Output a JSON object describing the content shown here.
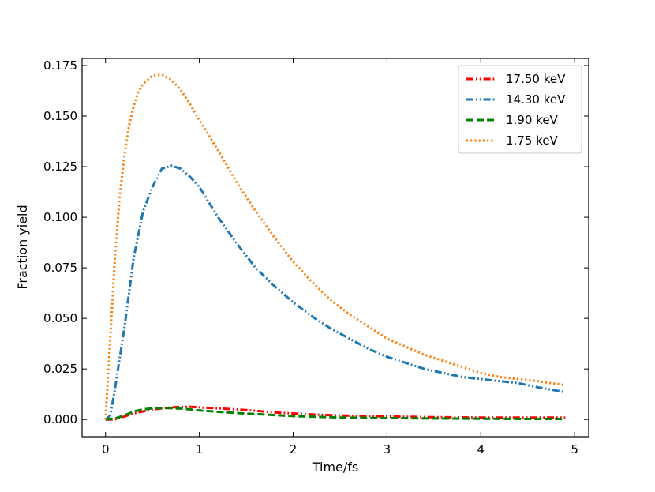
{
  "chart_data": {
    "type": "line",
    "title": "",
    "xlabel": "Time/fs",
    "ylabel": "Fraction yield",
    "xlim": [
      -0.25,
      5.15
    ],
    "ylim": [
      -0.0085,
      0.1785
    ],
    "xticks": [
      0,
      1,
      2,
      3,
      4,
      5
    ],
    "xtick_labels": [
      "0",
      "1",
      "2",
      "3",
      "4",
      "5"
    ],
    "yticks": [
      0.0,
      0.025,
      0.05,
      0.075,
      0.1,
      0.125,
      0.15,
      0.175
    ],
    "ytick_labels": [
      "0.000",
      "0.025",
      "0.050",
      "0.075",
      "0.100",
      "0.125",
      "0.150",
      "0.175"
    ],
    "grid": false,
    "legend_position": "top-right",
    "series": [
      {
        "name": "17.50 keV",
        "color": "#ff0000",
        "style": "dashdotdot",
        "x": [
          0,
          0.1,
          0.2,
          0.3,
          0.4,
          0.5,
          0.6,
          0.7,
          0.8,
          0.9,
          1.0,
          1.2,
          1.4,
          1.6,
          1.8,
          2.0,
          2.2,
          2.5,
          3.0,
          3.5,
          4.0,
          4.5,
          4.9
        ],
        "y": [
          0.0,
          0.0,
          0.0015,
          0.003,
          0.004,
          0.005,
          0.0055,
          0.006,
          0.0062,
          0.0063,
          0.006,
          0.0055,
          0.005,
          0.0043,
          0.0035,
          0.003,
          0.0025,
          0.002,
          0.0015,
          0.0012,
          0.001,
          0.001,
          0.001
        ]
      },
      {
        "name": "14.30 keV",
        "color": "#1f77b4",
        "style": "dashdotdot",
        "x": [
          0,
          0.05,
          0.1,
          0.2,
          0.3,
          0.4,
          0.5,
          0.6,
          0.7,
          0.8,
          0.9,
          1.0,
          1.2,
          1.4,
          1.6,
          1.8,
          2.0,
          2.2,
          2.4,
          2.6,
          2.8,
          3.0,
          3.2,
          3.4,
          3.6,
          3.8,
          4.0,
          4.2,
          4.4,
          4.6,
          4.9
        ],
        "y": [
          0.0,
          0.002,
          0.015,
          0.045,
          0.08,
          0.103,
          0.115,
          0.124,
          0.1255,
          0.124,
          0.12,
          0.115,
          0.1,
          0.087,
          0.075,
          0.066,
          0.058,
          0.051,
          0.045,
          0.04,
          0.035,
          0.031,
          0.028,
          0.025,
          0.023,
          0.021,
          0.02,
          0.019,
          0.018,
          0.016,
          0.0135
        ]
      },
      {
        "name": "1.90 keV",
        "color": "#008000",
        "style": "dashed",
        "x": [
          0,
          0.1,
          0.2,
          0.3,
          0.4,
          0.5,
          0.6,
          0.7,
          0.8,
          0.9,
          1.0,
          1.2,
          1.4,
          1.6,
          1.8,
          2.0,
          2.2,
          2.5,
          3.0,
          3.5,
          4.0,
          4.5,
          4.9
        ],
        "y": [
          0.0,
          0.0005,
          0.002,
          0.004,
          0.005,
          0.0055,
          0.0057,
          0.0056,
          0.0054,
          0.005,
          0.0045,
          0.0038,
          0.0032,
          0.0027,
          0.0022,
          0.0017,
          0.0014,
          0.001,
          0.0007,
          0.0005,
          0.0004,
          0.0003,
          0.0003
        ]
      },
      {
        "name": "1.75 keV",
        "color": "#ff7f0e",
        "style": "dotted",
        "x": [
          0,
          0.05,
          0.1,
          0.15,
          0.2,
          0.25,
          0.3,
          0.35,
          0.4,
          0.5,
          0.6,
          0.7,
          0.8,
          0.9,
          1.0,
          1.2,
          1.4,
          1.6,
          1.8,
          2.0,
          2.2,
          2.4,
          2.6,
          2.8,
          3.0,
          3.2,
          3.4,
          3.6,
          3.8,
          4.0,
          4.2,
          4.4,
          4.6,
          4.9
        ],
        "y": [
          0.0,
          0.04,
          0.08,
          0.11,
          0.13,
          0.145,
          0.155,
          0.162,
          0.166,
          0.17,
          0.1705,
          0.168,
          0.163,
          0.156,
          0.148,
          0.133,
          0.117,
          0.103,
          0.09,
          0.078,
          0.068,
          0.059,
          0.052,
          0.046,
          0.04,
          0.036,
          0.032,
          0.029,
          0.026,
          0.023,
          0.021,
          0.02,
          0.019,
          0.017
        ]
      }
    ]
  }
}
